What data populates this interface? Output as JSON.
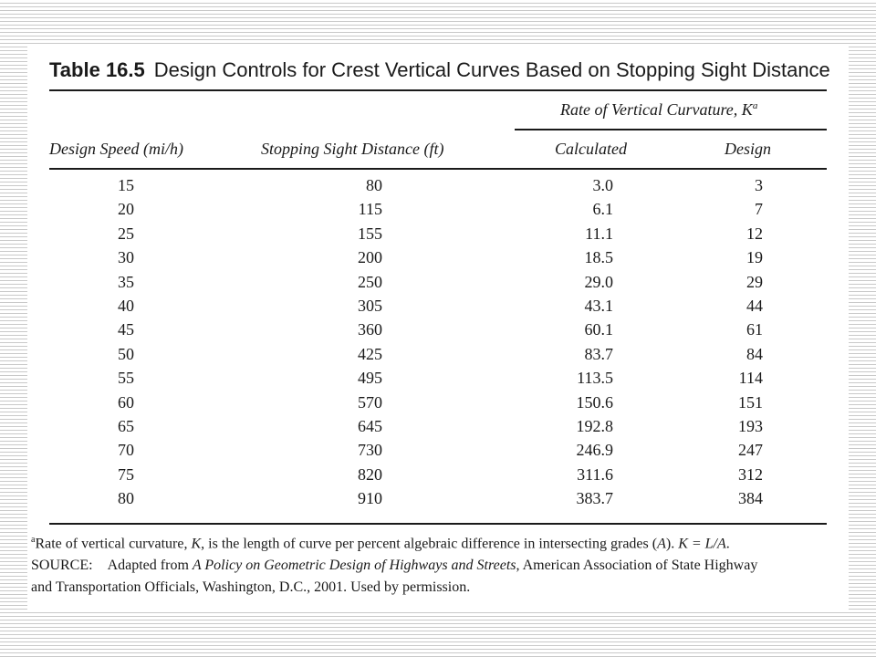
{
  "table": {
    "number": "Table 16.5",
    "title": "Design Controls for Crest Vertical Curves Based on Stopping Sight Distance",
    "group_header": "Rate of Vertical Curvature, K",
    "group_header_sup": "a",
    "columns": {
      "speed": "Design Speed (mi/h)",
      "ssd": "Stopping Sight Distance (ft)",
      "calculated": "Calculated",
      "design": "Design"
    },
    "rows": [
      {
        "speed": "15",
        "ssd": "80",
        "calc": "3.0",
        "design": "3"
      },
      {
        "speed": "20",
        "ssd": "115",
        "calc": "6.1",
        "design": "7"
      },
      {
        "speed": "25",
        "ssd": "155",
        "calc": "11.1",
        "design": "12"
      },
      {
        "speed": "30",
        "ssd": "200",
        "calc": "18.5",
        "design": "19"
      },
      {
        "speed": "35",
        "ssd": "250",
        "calc": "29.0",
        "design": "29"
      },
      {
        "speed": "40",
        "ssd": "305",
        "calc": "43.1",
        "design": "44"
      },
      {
        "speed": "45",
        "ssd": "360",
        "calc": "60.1",
        "design": "61"
      },
      {
        "speed": "50",
        "ssd": "425",
        "calc": "83.7",
        "design": "84"
      },
      {
        "speed": "55",
        "ssd": "495",
        "calc": "113.5",
        "design": "114"
      },
      {
        "speed": "60",
        "ssd": "570",
        "calc": "150.6",
        "design": "151"
      },
      {
        "speed": "65",
        "ssd": "645",
        "calc": "192.8",
        "design": "193"
      },
      {
        "speed": "70",
        "ssd": "730",
        "calc": "246.9",
        "design": "247"
      },
      {
        "speed": "75",
        "ssd": "820",
        "calc": "311.6",
        "design": "312"
      },
      {
        "speed": "80",
        "ssd": "910",
        "calc": "383.7",
        "design": "384"
      }
    ]
  },
  "footnote": {
    "marker": "a",
    "text_1": "Rate of vertical curvature, ",
    "var_k": "K",
    "text_2": ", is the length of curve per percent algebraic difference in intersecting grades (",
    "var_a": "A",
    "text_3": "). ",
    "formula": "K = L/A",
    "text_4": "."
  },
  "source": {
    "label": "SOURCE:",
    "text_1": "Adapted from ",
    "publication": "A Policy on Geometric Design of Highways and Streets",
    "text_2": ", American Association of State Highway",
    "line_2": "and Transportation Officials, Washington, D.C., 2001. Used by permission."
  }
}
